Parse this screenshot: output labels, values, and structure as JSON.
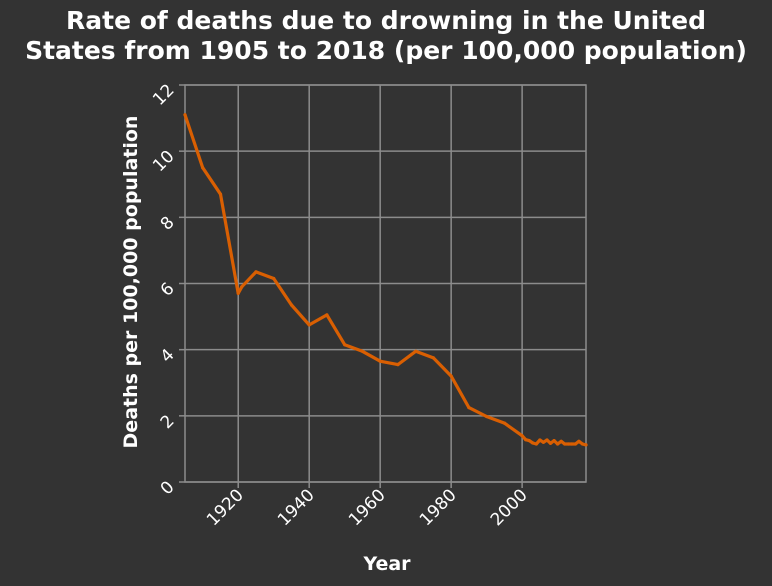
{
  "chart_data": {
    "type": "line",
    "title_lines": [
      "Rate of deaths due to drowning in the United",
      "States from 1905 to 2018 (per 100,000 population)"
    ],
    "xlabel": "Year",
    "ylabel": "Deaths per 100,000 population",
    "xlim": [
      1905,
      2018
    ],
    "ylim": [
      0,
      12
    ],
    "x_ticks": [
      1920,
      1940,
      1960,
      1980,
      2000
    ],
    "y_ticks": [
      0,
      2,
      4,
      6,
      8,
      10,
      12
    ],
    "grid": true,
    "line_color": "#d95f02",
    "background_color": "#333333",
    "grid_color": "#8c8c8c",
    "series": [
      {
        "x": [
          1905,
          1910,
          1915,
          1920,
          1921,
          1925,
          1930,
          1935,
          1940,
          1945,
          1950,
          1955,
          1960,
          1965,
          1970,
          1975,
          1980,
          1985,
          1990,
          1995,
          2000,
          2001,
          2002,
          2003,
          2004,
          2005,
          2006,
          2007,
          2008,
          2009,
          2010,
          2011,
          2012,
          2013,
          2014,
          2015,
          2016,
          2017,
          2018
        ],
        "y": [
          11.1,
          9.5,
          8.7,
          5.7,
          5.9,
          6.35,
          6.15,
          5.35,
          4.75,
          5.05,
          4.15,
          3.95,
          3.65,
          3.55,
          3.95,
          3.75,
          3.2,
          2.25,
          1.98,
          1.78,
          1.4,
          1.28,
          1.25,
          1.18,
          1.15,
          1.27,
          1.2,
          1.27,
          1.17,
          1.25,
          1.15,
          1.23,
          1.15,
          1.15,
          1.15,
          1.15,
          1.23,
          1.15,
          1.12
        ]
      }
    ]
  }
}
